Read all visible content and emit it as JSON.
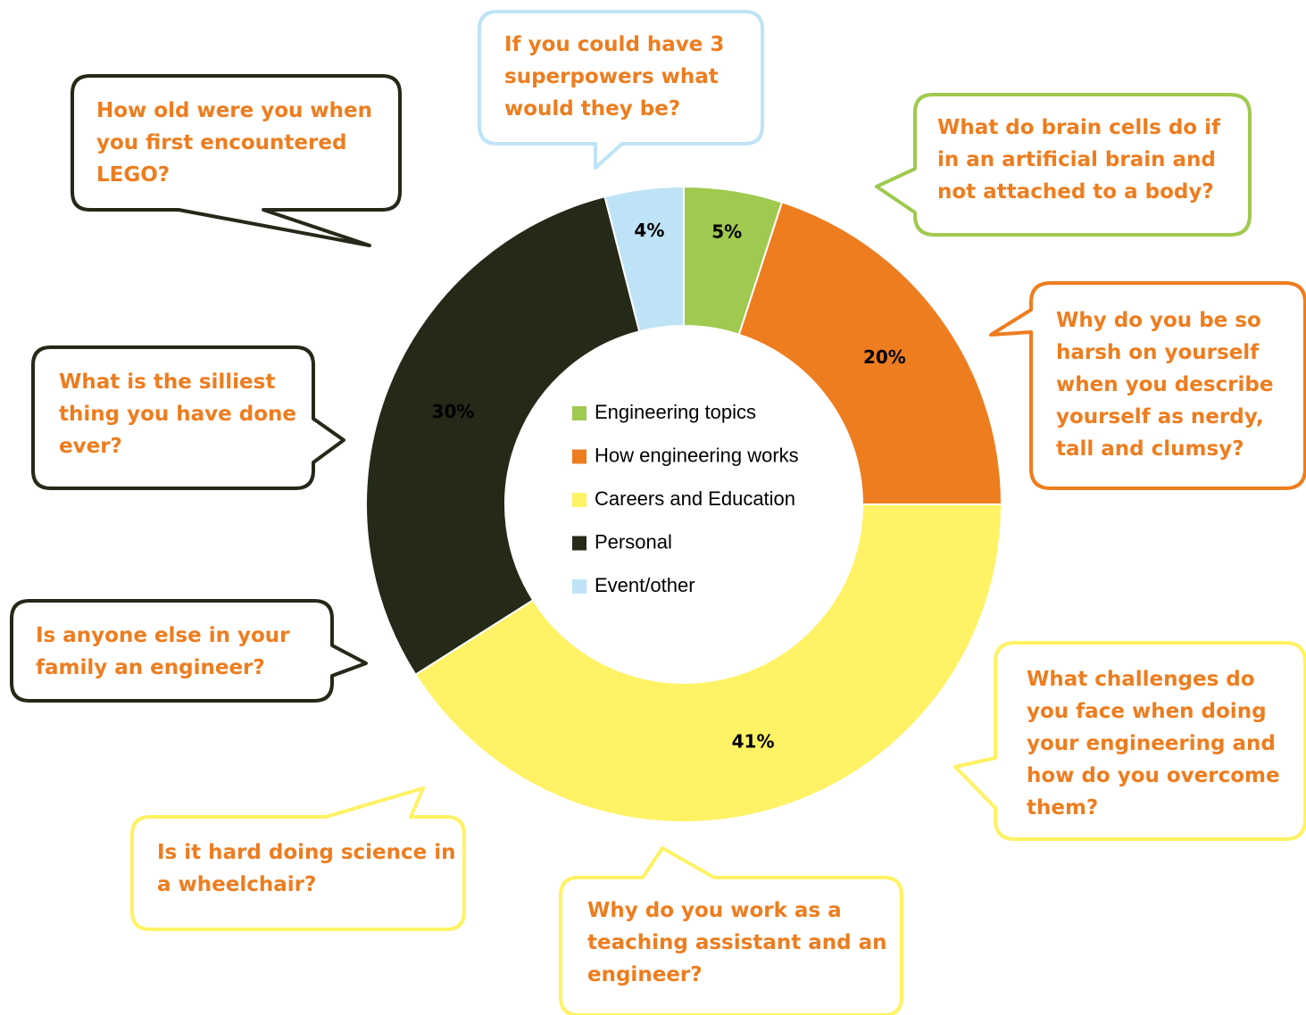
{
  "chart_data": {
    "type": "pie",
    "donut": true,
    "slices": [
      {
        "name": "Engineering topics",
        "value": 5,
        "label": "5%",
        "color": "#9FC94F"
      },
      {
        "name": "How engineering works",
        "value": 20,
        "label": "20%",
        "color": "#ED7D1F"
      },
      {
        "name": "Careers and Education",
        "value": 41,
        "label": "41%",
        "color": "#FFF264"
      },
      {
        "name": "Personal",
        "value": 30,
        "label": "30%",
        "color": "#242918"
      },
      {
        "name": "Event/other",
        "value": 4,
        "label": "4%",
        "color": "#BEE3F7"
      }
    ],
    "legend_position": "center",
    "title": ""
  },
  "callouts": [
    {
      "slice": "Engineering topics",
      "lines": [
        "What do brain cells do if",
        "in an artificial brain and",
        "not attached to a body?"
      ]
    },
    {
      "slice": "How engineering works",
      "lines": [
        "Why do you be so",
        "harsh on yourself",
        "when you describe",
        "yourself as nerdy,",
        "tall and clumsy?"
      ]
    },
    {
      "slice": "Careers and Education",
      "lines": [
        "What challenges do",
        "you face when doing",
        "your engineering and",
        "how do you overcome",
        "them?"
      ]
    },
    {
      "slice": "Careers and Education",
      "lines": [
        "Why do you work as a",
        "teaching assistant and an",
        "engineer?"
      ]
    },
    {
      "slice": "Careers and Education",
      "lines": [
        "Is it hard doing science in",
        "a wheelchair?"
      ]
    },
    {
      "slice": "Personal",
      "lines": [
        "Is anyone else in your",
        "family an engineer?"
      ]
    },
    {
      "slice": "Personal",
      "lines": [
        "What is the silliest",
        "thing you have done",
        "ever?"
      ]
    },
    {
      "slice": "Personal",
      "lines": [
        "How old were you when",
        "you first encountered",
        "LEGO?"
      ]
    },
    {
      "slice": "Event/other",
      "lines": [
        "If you could have 3",
        "superpowers what",
        "would they be?"
      ]
    }
  ],
  "colors": {
    "callout_text": "#ED7D1F",
    "green": "#9FC94F",
    "orange": "#ED7D1F",
    "yellow": "#FFF264",
    "dark": "#242918",
    "lightblue": "#BEE3F7"
  }
}
